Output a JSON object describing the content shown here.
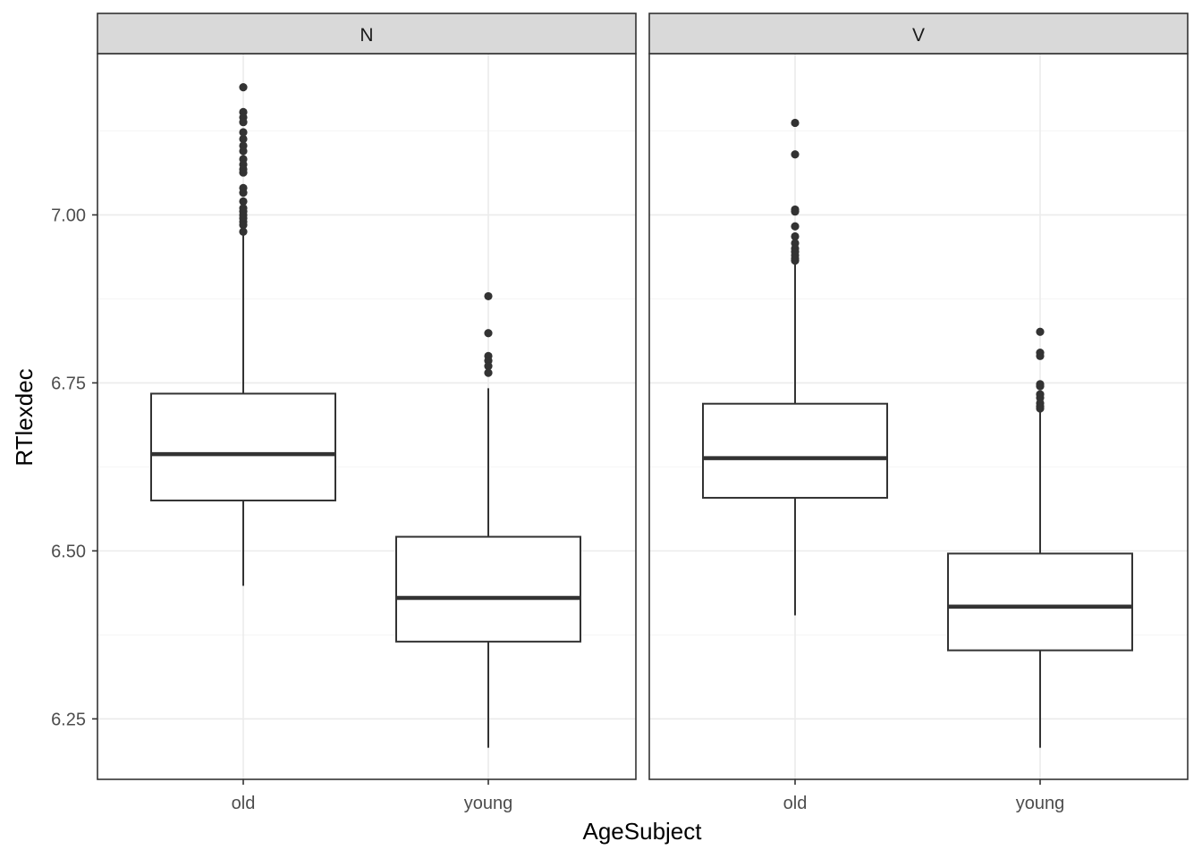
{
  "chart_data": {
    "type": "boxplot",
    "xlabel": "AgeSubject",
    "ylabel": "RTlexdec",
    "categories": [
      "old",
      "young"
    ],
    "ylim": [
      6.16,
      7.24
    ],
    "yticks": [
      6.25,
      6.5,
      6.75,
      7.0
    ],
    "ytick_labels": [
      "6.25",
      "6.50",
      "6.75",
      "7.00"
    ],
    "grid": true,
    "colors": {
      "box_stroke": "#333333",
      "outlier": "#333333",
      "panel_border": "#333333",
      "strip_fill": "#d9d9d9",
      "grid_major": "#ebebeb",
      "grid_minor": "#f5f5f5"
    },
    "panels": [
      {
        "strip": "N",
        "boxes": [
          {
            "category": "old",
            "whisker_low": 6.448,
            "q1": 6.575,
            "median": 6.644,
            "q3": 6.734,
            "whisker_high": 6.972,
            "outliers": [
              7.19,
              7.153,
              7.145,
              7.138,
              7.123,
              7.113,
              7.103,
              7.095,
              7.083,
              7.075,
              7.068,
              7.063,
              7.04,
              7.033,
              7.02,
              7.01,
              7.005,
              7.0,
              6.995,
              6.99,
              6.985,
              6.975
            ]
          },
          {
            "category": "young",
            "whisker_low": 6.207,
            "q1": 6.365,
            "median": 6.43,
            "q3": 6.521,
            "whisker_high": 6.742,
            "outliers": [
              6.879,
              6.824,
              6.79,
              6.783,
              6.775,
              6.765
            ]
          }
        ]
      },
      {
        "strip": "V",
        "boxes": [
          {
            "category": "old",
            "whisker_low": 6.404,
            "q1": 6.579,
            "median": 6.638,
            "q3": 6.719,
            "whisker_high": 6.929,
            "outliers": [
              7.137,
              7.09,
              7.008,
              7.005,
              6.983,
              6.968,
              6.958,
              6.95,
              6.945,
              6.94,
              6.935,
              6.932
            ]
          },
          {
            "category": "young",
            "whisker_low": 6.207,
            "q1": 6.352,
            "median": 6.417,
            "q3": 6.496,
            "whisker_high": 6.708,
            "outliers": [
              6.826,
              6.795,
              6.79,
              6.748,
              6.745,
              6.733,
              6.728,
              6.72,
              6.715,
              6.712
            ]
          }
        ]
      }
    ]
  }
}
